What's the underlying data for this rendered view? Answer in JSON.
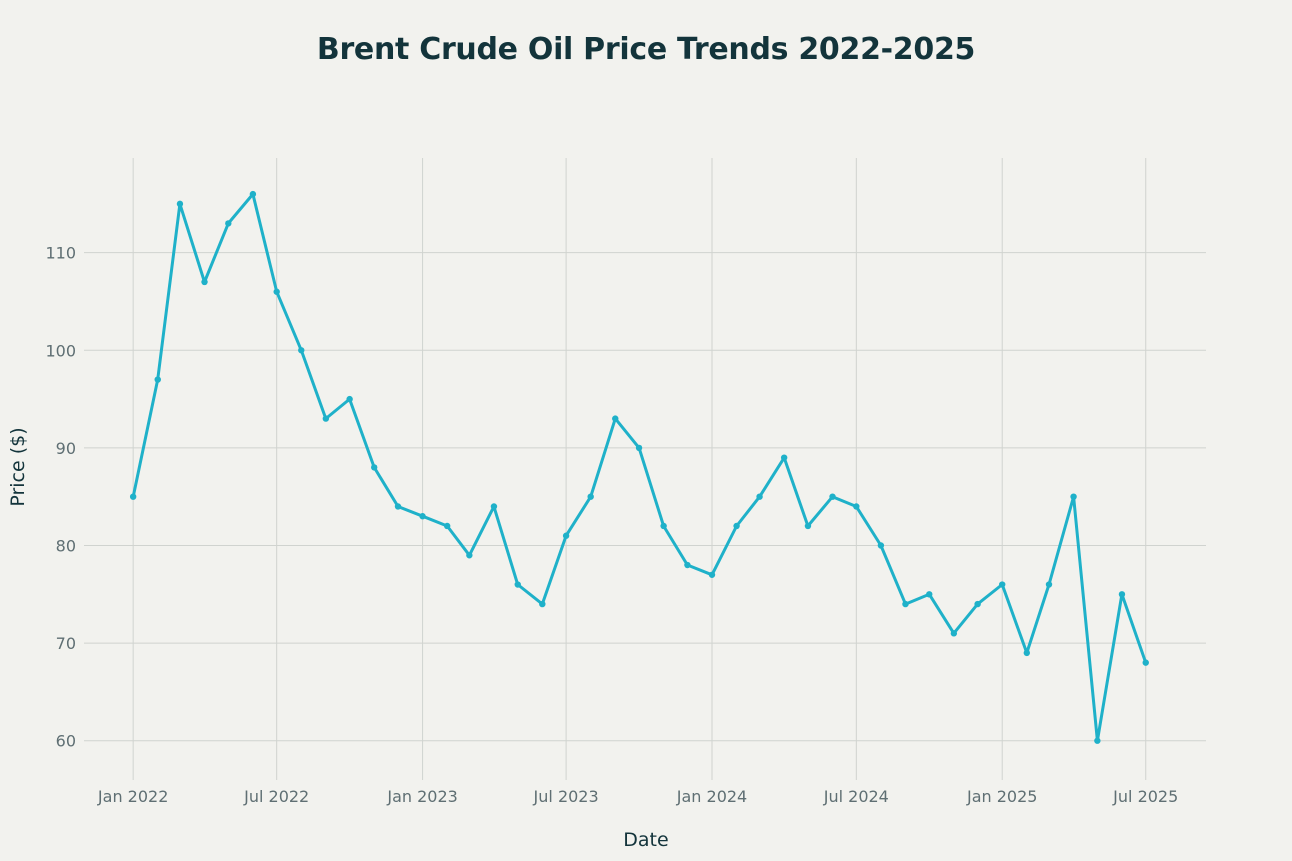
{
  "chart_data": {
    "type": "line",
    "title": "Brent Crude Oil Price Trends 2022-2025",
    "xlabel": "Date",
    "ylabel": "Price ($)",
    "ylim": [
      57,
      119.7
    ],
    "yticks": [
      60,
      70,
      80,
      90,
      100,
      110
    ],
    "xlim": [
      "2021-10-31",
      "2025-09-15"
    ],
    "xticks": [
      {
        "date": "2022-01-01",
        "label": "Jan 2022"
      },
      {
        "date": "2022-07-01",
        "label": "Jul 2022"
      },
      {
        "date": "2023-01-01",
        "label": "Jan 2023"
      },
      {
        "date": "2023-07-01",
        "label": "Jul 2023"
      },
      {
        "date": "2024-01-01",
        "label": "Jan 2024"
      },
      {
        "date": "2024-07-01",
        "label": "Jul 2024"
      },
      {
        "date": "2025-01-01",
        "label": "Jan 2025"
      },
      {
        "date": "2025-07-01",
        "label": "Jul 2025"
      }
    ],
    "grid": true,
    "legend": "none",
    "line_color": "#1fb1c9",
    "series": [
      {
        "x": [
          "2022-01-01",
          "2022-02-01",
          "2022-03-01",
          "2022-04-01",
          "2022-05-01",
          "2022-06-01",
          "2022-07-01",
          "2022-08-01",
          "2022-09-01",
          "2022-10-01",
          "2022-11-01",
          "2022-12-01",
          "2023-01-01",
          "2023-02-01",
          "2023-03-01",
          "2023-04-01",
          "2023-05-01",
          "2023-06-01",
          "2023-07-01",
          "2023-08-01",
          "2023-09-01",
          "2023-10-01",
          "2023-11-01",
          "2023-12-01",
          "2024-01-01",
          "2024-02-01",
          "2024-03-01",
          "2024-04-01",
          "2024-05-01",
          "2024-06-01",
          "2024-07-01",
          "2024-08-01",
          "2024-09-01",
          "2024-10-01",
          "2024-11-01",
          "2024-12-01",
          "2025-01-01",
          "2025-02-01",
          "2025-03-01",
          "2025-04-01",
          "2025-05-01",
          "2025-06-01",
          "2025-07-01"
        ],
        "values": [
          85,
          97,
          115,
          107,
          113,
          116,
          106,
          100,
          93,
          95,
          88,
          84,
          83,
          82,
          79,
          84,
          76,
          74,
          81,
          85,
          93,
          90,
          82,
          78,
          77,
          82,
          85,
          89,
          82,
          85,
          84,
          80,
          74,
          75,
          71,
          74,
          76,
          69,
          76,
          85,
          60,
          75,
          68
        ]
      }
    ]
  }
}
